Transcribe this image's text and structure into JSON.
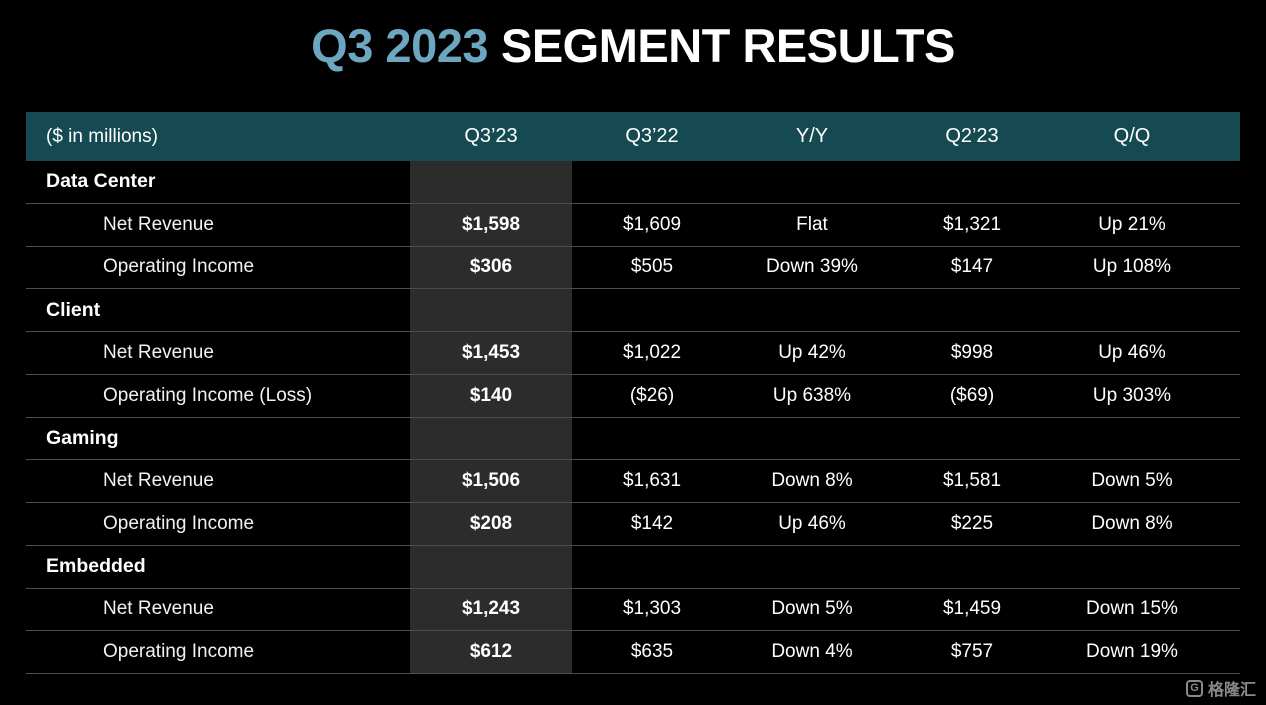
{
  "title": {
    "highlight": "Q3 2023",
    "rest": "SEGMENT RESULTS"
  },
  "chart_data": {
    "type": "table",
    "title": "Q3 2023 SEGMENT RESULTS",
    "unit_label": "($ in millions)",
    "columns": [
      "Q3’23",
      "Q3’22",
      "Y/Y",
      "Q2’23",
      "Q/Q"
    ],
    "highlighted_column": "Q3’23",
    "rows": [
      {
        "type": "section",
        "label": "Data Center"
      },
      {
        "type": "data",
        "label": "Net Revenue",
        "values": [
          "$1,598",
          "$1,609",
          "Flat",
          "$1,321",
          "Up 21%"
        ]
      },
      {
        "type": "data",
        "label": "Operating Income",
        "values": [
          "$306",
          "$505",
          "Down 39%",
          "$147",
          "Up 108%"
        ]
      },
      {
        "type": "section",
        "label": "Client"
      },
      {
        "type": "data",
        "label": "Net Revenue",
        "values": [
          "$1,453",
          "$1,022",
          "Up 42%",
          "$998",
          "Up 46%"
        ]
      },
      {
        "type": "data",
        "label": "Operating Income (Loss)",
        "values": [
          "$140",
          "($26)",
          "Up 638%",
          "($69)",
          "Up 303%"
        ]
      },
      {
        "type": "section",
        "label": "Gaming"
      },
      {
        "type": "data",
        "label": "Net Revenue",
        "values": [
          "$1,506",
          "$1,631",
          "Down 8%",
          "$1,581",
          "Down 5%"
        ]
      },
      {
        "type": "data",
        "label": "Operating Income",
        "values": [
          "$208",
          "$142",
          "Up 46%",
          "$225",
          "Down 8%"
        ]
      },
      {
        "type": "section",
        "label": "Embedded"
      },
      {
        "type": "data",
        "label": "Net Revenue",
        "values": [
          "$1,243",
          "$1,303",
          "Down 5%",
          "$1,459",
          "Down 15%"
        ]
      },
      {
        "type": "data",
        "label": "Operating Income",
        "values": [
          "$612",
          "$635",
          "Down 4%",
          "$757",
          "Down 19%"
        ]
      }
    ]
  },
  "watermark": {
    "logo_letter": "G",
    "text": "格隆汇"
  },
  "colors": {
    "background": "#000000",
    "accent_blue": "#6CA6BF",
    "header_teal": "#164A53",
    "highlight_column_bg": "#2C2C2C",
    "row_divider": "#4A4E50"
  }
}
